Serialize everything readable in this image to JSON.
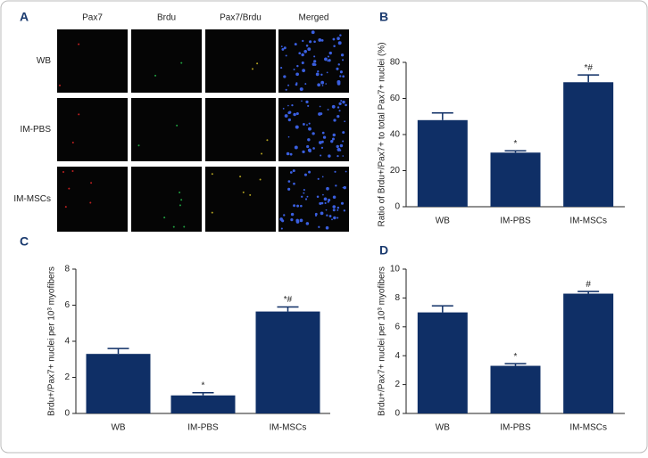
{
  "panel_a": {
    "label": "A",
    "columns": [
      "Pax7",
      "Brdu",
      "Pax7/Brdu",
      "Merged"
    ],
    "rows": [
      "WB",
      "IM-PBS",
      "IM-MSCs"
    ]
  },
  "chart_data": [
    {
      "type": "bar",
      "label": "B",
      "ylabel": "Ratio of Brdu+/Pax7+ to total Pax7+ nuclei (%)",
      "categories": [
        "WB",
        "IM-PBS",
        "IM-MSCs"
      ],
      "values": [
        48,
        30,
        69
      ],
      "errors": [
        4,
        1,
        4
      ],
      "annotations": [
        null,
        "*",
        "*#"
      ],
      "color": "#0f2f66",
      "ylim": [
        0,
        80
      ],
      "yticks": [
        0,
        20,
        40,
        60,
        80
      ]
    },
    {
      "type": "bar",
      "label": "C",
      "ylabel": "Brdu+/Pax7+ nuclei per 10³ myofibers",
      "categories": [
        "WB",
        "IM-PBS",
        "IM-MSCs"
      ],
      "values": [
        3.3,
        1.0,
        5.65
      ],
      "errors": [
        0.3,
        0.15,
        0.25
      ],
      "annotations": [
        null,
        "*",
        "*#"
      ],
      "color": "#0f2f66",
      "ylim": [
        0,
        8
      ],
      "yticks": [
        0,
        2,
        4,
        6,
        8
      ]
    },
    {
      "type": "bar",
      "label": "D",
      "ylabel": "Brdu+/Pax7+ nuclei per 10³ myofibers",
      "categories": [
        "WB",
        "IM-PBS",
        "IM-MSCs"
      ],
      "values": [
        7.0,
        3.3,
        8.3
      ],
      "errors": [
        0.45,
        0.15,
        0.15
      ],
      "annotations": [
        null,
        "*",
        "#"
      ],
      "color": "#0f2f66",
      "ylim": [
        0,
        10
      ],
      "yticks": [
        0,
        2,
        4,
        6,
        8,
        10
      ]
    }
  ]
}
